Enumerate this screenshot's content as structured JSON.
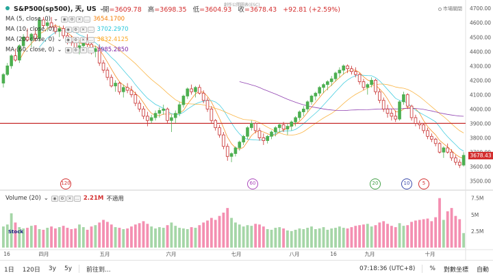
{
  "header": {
    "symbol": "S&P500(sp500), 天, US",
    "chevron": "⌄",
    "open_label": "開",
    "open_value": "=3609.78",
    "high_label": "高",
    "high_value": "=3698.35",
    "low_label": "低",
    "low_value": "=3604.93",
    "close_label": "收",
    "close_value": "=3678.43",
    "change_value": "+92.81 (+2.59%)",
    "watermark": "創作公開圖表(ESC)",
    "market_status": "市場關閉"
  },
  "ma_indicators": [
    {
      "label": "MA (5, close, 0)",
      "value": "3654.1700",
      "color": "#f57c00"
    },
    {
      "label": "MA (10, close, 0)",
      "value": "3702.2970",
      "color": "#26c6da"
    },
    {
      "label": "MA (20, close, 0)",
      "value": "3832.4125",
      "color": "#f9a825"
    },
    {
      "label": "MA (60, close, 0)",
      "value": "3985.2850",
      "color": "#7b1fa2"
    }
  ],
  "volume_indicator": {
    "label": "Volume (20)",
    "value": "2.21M",
    "note": "不適用"
  },
  "logo_text": "Stock",
  "price_axis": {
    "ticks": [
      "4700.00",
      "4600.00",
      "4500.00",
      "4400.00",
      "4300.00",
      "4200.00",
      "4100.00",
      "4000.00",
      "3900.00",
      "3800.00",
      "3700.00",
      "3600.00",
      "3500.00"
    ],
    "current_price": "3678.43"
  },
  "volume_axis": {
    "ticks": [
      "7.5M",
      "5M",
      "2.5M"
    ]
  },
  "time_axis": [
    "16",
    "四月",
    "五月",
    "六月",
    "七月",
    "八月",
    "16",
    "九月",
    "十月"
  ],
  "events": [
    {
      "label": "120",
      "color": "#d32f2f"
    },
    {
      "label": "60",
      "color": "#ab47bc"
    },
    {
      "label": "20",
      "color": "#43a047"
    },
    {
      "label": "10",
      "color": "#3949ab"
    },
    {
      "label": "5",
      "color": "#d32f2f"
    }
  ],
  "toolbar": {
    "left_buttons": [
      "1日",
      "120日",
      "3y",
      "5y"
    ],
    "goto": "前往到...",
    "time": "07:18:36 (UTC+8)",
    "percent": "%",
    "log": "對數坐標",
    "auto": "自動"
  },
  "colors": {
    "up": "#26a69a",
    "down": "#d32f2f",
    "candle_up_fill": "#4caf50",
    "candle_down_fill": "#c62828",
    "vol_up": "#a5d6a7",
    "vol_down": "#f48fb1",
    "hline": "#c62828"
  },
  "chart_data": {
    "type": "candlestick",
    "horizontal_line": 3900,
    "ylim": [
      3450,
      4720
    ],
    "volume_ylim": [
      0,
      8.5
    ],
    "candles": [
      [
        4180,
        4250,
        4150,
        4240
      ],
      [
        4240,
        4320,
        4230,
        4300
      ],
      [
        4300,
        4380,
        4280,
        4370
      ],
      [
        4370,
        4420,
        4330,
        4340
      ],
      [
        4340,
        4450,
        4320,
        4440
      ],
      [
        4440,
        4520,
        4420,
        4500
      ],
      [
        4500,
        4560,
        4470,
        4480
      ],
      [
        4480,
        4530,
        4430,
        4520
      ],
      [
        4520,
        4560,
        4470,
        4490
      ],
      [
        4490,
        4640,
        4470,
        4620
      ],
      [
        4620,
        4640,
        4560,
        4580
      ],
      [
        4580,
        4620,
        4540,
        4600
      ],
      [
        4600,
        4640,
        4560,
        4570
      ],
      [
        4570,
        4590,
        4520,
        4540
      ],
      [
        4540,
        4580,
        4500,
        4560
      ],
      [
        4560,
        4580,
        4490,
        4510
      ],
      [
        4510,
        4530,
        4450,
        4470
      ],
      [
        4470,
        4510,
        4440,
        4460
      ],
      [
        4460,
        4490,
        4400,
        4420
      ],
      [
        4420,
        4460,
        4380,
        4440
      ],
      [
        4440,
        4500,
        4420,
        4480
      ],
      [
        4480,
        4520,
        4430,
        4450
      ],
      [
        4450,
        4470,
        4380,
        4400
      ],
      [
        4400,
        4440,
        4360,
        4420
      ],
      [
        4420,
        4450,
        4300,
        4320
      ],
      [
        4320,
        4340,
        4250,
        4270
      ],
      [
        4270,
        4290,
        4200,
        4220
      ],
      [
        4220,
        4240,
        4150,
        4160
      ],
      [
        4160,
        4200,
        4120,
        4180
      ],
      [
        4180,
        4190,
        4100,
        4120
      ],
      [
        4120,
        4170,
        4080,
        4150
      ],
      [
        4150,
        4180,
        4110,
        4130
      ],
      [
        4130,
        4160,
        4080,
        4100
      ],
      [
        4100,
        4120,
        4020,
        4040
      ],
      [
        4040,
        4060,
        3980,
        4000
      ],
      [
        4000,
        4020,
        3930,
        3950
      ],
      [
        3950,
        3980,
        3880,
        3920
      ],
      [
        3920,
        3960,
        3900,
        3940
      ],
      [
        3940,
        3990,
        3920,
        3970
      ],
      [
        3970,
        4010,
        3940,
        3990
      ],
      [
        3990,
        4030,
        3960,
        4000
      ],
      [
        4000,
        4010,
        3900,
        3920
      ],
      [
        3920,
        3960,
        3840,
        3940
      ],
      [
        3940,
        3990,
        3900,
        3970
      ],
      [
        3970,
        4050,
        3950,
        4030
      ],
      [
        4030,
        4100,
        4010,
        4090
      ],
      [
        4090,
        4150,
        4070,
        4140
      ],
      [
        4140,
        4170,
        4100,
        4120
      ],
      [
        4120,
        4160,
        4080,
        4150
      ],
      [
        4150,
        4170,
        4100,
        4110
      ],
      [
        4110,
        4130,
        4040,
        4060
      ],
      [
        4060,
        4080,
        3980,
        4000
      ],
      [
        4000,
        4020,
        3900,
        3920
      ],
      [
        3920,
        3930,
        3850,
        3870
      ],
      [
        3870,
        3890,
        3800,
        3820
      ],
      [
        3820,
        3840,
        3720,
        3740
      ],
      [
        3740,
        3760,
        3640,
        3670
      ],
      [
        3670,
        3700,
        3630,
        3690
      ],
      [
        3690,
        3740,
        3670,
        3730
      ],
      [
        3730,
        3780,
        3710,
        3770
      ],
      [
        3770,
        3820,
        3750,
        3810
      ],
      [
        3810,
        3880,
        3790,
        3870
      ],
      [
        3870,
        3920,
        3850,
        3900
      ],
      [
        3900,
        3910,
        3830,
        3850
      ],
      [
        3850,
        3870,
        3780,
        3800
      ],
      [
        3800,
        3830,
        3750,
        3780
      ],
      [
        3780,
        3820,
        3760,
        3810
      ],
      [
        3810,
        3850,
        3790,
        3840
      ],
      [
        3840,
        3880,
        3810,
        3870
      ],
      [
        3870,
        3900,
        3840,
        3890
      ],
      [
        3890,
        3910,
        3840,
        3860
      ],
      [
        3860,
        3900,
        3820,
        3880
      ],
      [
        3880,
        3920,
        3850,
        3910
      ],
      [
        3910,
        3950,
        3880,
        3940
      ],
      [
        3940,
        3990,
        3920,
        3980
      ],
      [
        3980,
        4020,
        3950,
        4000
      ],
      [
        4000,
        4060,
        3980,
        4050
      ],
      [
        4050,
        4100,
        4030,
        4090
      ],
      [
        4090,
        4120,
        4060,
        4110
      ],
      [
        4110,
        4160,
        4090,
        4150
      ],
      [
        4150,
        4180,
        4110,
        4170
      ],
      [
        4170,
        4200,
        4130,
        4190
      ],
      [
        4190,
        4230,
        4160,
        4210
      ],
      [
        4210,
        4260,
        4190,
        4250
      ],
      [
        4250,
        4290,
        4220,
        4270
      ],
      [
        4270,
        4310,
        4240,
        4300
      ],
      [
        4300,
        4310,
        4250,
        4280
      ],
      [
        4280,
        4300,
        4240,
        4260
      ],
      [
        4260,
        4290,
        4220,
        4240
      ],
      [
        4240,
        4250,
        4170,
        4190
      ],
      [
        4190,
        4210,
        4130,
        4150
      ],
      [
        4150,
        4180,
        4100,
        4170
      ],
      [
        4170,
        4220,
        4150,
        4200
      ],
      [
        4200,
        4210,
        4100,
        4120
      ],
      [
        4120,
        4140,
        4040,
        4060
      ],
      [
        4060,
        4080,
        3980,
        4000
      ],
      [
        4000,
        4030,
        3940,
        3970
      ],
      [
        3970,
        4000,
        3920,
        3950
      ],
      [
        3950,
        3990,
        3910,
        3930
      ],
      [
        3930,
        4060,
        3920,
        4050
      ],
      [
        4050,
        4120,
        4030,
        4100
      ],
      [
        4100,
        4110,
        4000,
        4020
      ],
      [
        4020,
        4030,
        3920,
        3940
      ],
      [
        3940,
        3960,
        3880,
        3900
      ],
      [
        3900,
        3920,
        3860,
        3890
      ],
      [
        3890,
        3900,
        3830,
        3850
      ],
      [
        3850,
        3870,
        3790,
        3810
      ],
      [
        3810,
        3830,
        3770,
        3790
      ],
      [
        3790,
        3800,
        3740,
        3760
      ],
      [
        3760,
        3770,
        3690,
        3700
      ],
      [
        3700,
        3740,
        3660,
        3730
      ],
      [
        3730,
        3760,
        3690,
        3700
      ],
      [
        3700,
        3720,
        3640,
        3660
      ],
      [
        3660,
        3680,
        3610,
        3630
      ],
      [
        3630,
        3650,
        3590,
        3610
      ],
      [
        3610,
        3700,
        3600,
        3678
      ]
    ],
    "volume": [
      3.2,
      3.5,
      5.2,
      3.8,
      3.1,
      2.9,
      3.0,
      3.3,
      3.4,
      2.8,
      2.7,
      3.0,
      3.2,
      2.9,
      3.1,
      3.3,
      3.0,
      2.8,
      2.9,
      3.5,
      3.1,
      2.7,
      3.2,
      3.4,
      3.8,
      4.2,
      3.9,
      3.5,
      3.1,
      3.0,
      2.8,
      2.9,
      3.2,
      3.5,
      3.7,
      4.0,
      3.6,
      3.2,
      2.9,
      3.1,
      3.0,
      3.4,
      3.8,
      3.3,
      3.0,
      2.9,
      2.8,
      3.1,
      3.0,
      3.4,
      3.8,
      4.1,
      4.5,
      4.2,
      4.8,
      5.3,
      6.0,
      4.5,
      3.8,
      3.5,
      3.2,
      3.4,
      3.3,
      3.6,
      3.5,
      3.2,
      2.8,
      2.7,
      3.0,
      3.1,
      2.9,
      2.6,
      2.5,
      2.7,
      2.9,
      2.8,
      3.0,
      3.2,
      2.8,
      2.9,
      3.1,
      2.7,
      2.9,
      3.0,
      3.2,
      3.0,
      2.9,
      3.1,
      3.3,
      3.4,
      3.5,
      3.6,
      3.2,
      3.4,
      3.8,
      4.0,
      3.6,
      3.3,
      3.1,
      3.7,
      3.3,
      3.4,
      3.9,
      4.1,
      4.2,
      4.3,
      4.4,
      4.0,
      4.6,
      7.5,
      4.2,
      5.5,
      6.0,
      4.8,
      4.3,
      2.2
    ]
  }
}
